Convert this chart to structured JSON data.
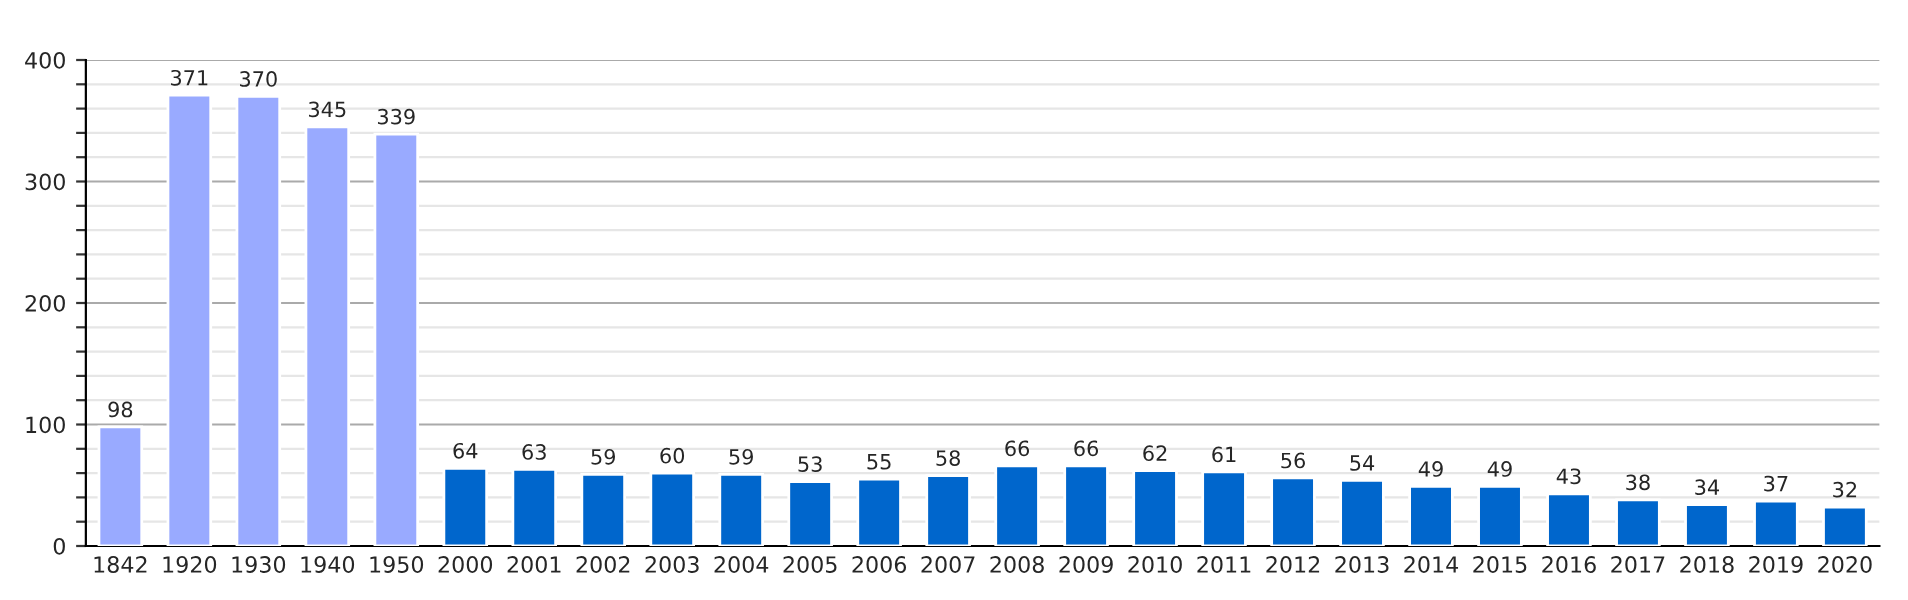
{
  "chart_data": {
    "type": "bar",
    "categories": [
      "1842",
      "1920",
      "1930",
      "1940",
      "1950",
      "2000",
      "2001",
      "2002",
      "2003",
      "2004",
      "2005",
      "2006",
      "2007",
      "2008",
      "2009",
      "2010",
      "2011",
      "2012",
      "2013",
      "2014",
      "2015",
      "2016",
      "2017",
      "2018",
      "2019",
      "2020"
    ],
    "values": [
      98,
      371,
      370,
      345,
      339,
      64,
      63,
      59,
      60,
      59,
      53,
      55,
      58,
      66,
      66,
      62,
      61,
      56,
      54,
      49,
      49,
      43,
      38,
      34,
      37,
      32
    ],
    "colors": [
      "#99aaff",
      "#99aaff",
      "#99aaff",
      "#99aaff",
      "#99aaff",
      "#0066cc",
      "#0066cc",
      "#0066cc",
      "#0066cc",
      "#0066cc",
      "#0066cc",
      "#0066cc",
      "#0066cc",
      "#0066cc",
      "#0066cc",
      "#0066cc",
      "#0066cc",
      "#0066cc",
      "#0066cc",
      "#0066cc",
      "#0066cc",
      "#0066cc",
      "#0066cc",
      "#0066cc",
      "#0066cc",
      "#0066cc"
    ],
    "ylim": [
      0,
      400
    ],
    "yticks": [
      0,
      {
        "value": 20,
        "label": null
      },
      {
        "value": 40,
        "label": null
      },
      {
        "value": 60,
        "label": null
      },
      {
        "value": 80,
        "label": null
      },
      100,
      {
        "value": 120,
        "label": null
      },
      {
        "value": 140,
        "label": null
      },
      {
        "value": 160,
        "label": null
      },
      {
        "value": 180,
        "label": null
      },
      200,
      {
        "value": 220,
        "label": null
      },
      {
        "value": 240,
        "label": null
      },
      {
        "value": 260,
        "label": null
      },
      {
        "value": 280,
        "label": null
      },
      300,
      {
        "value": 320,
        "label": null
      },
      {
        "value": 340,
        "label": null
      },
      {
        "value": 360,
        "label": null
      },
      {
        "value": 380,
        "label": null
      },
      400
    ],
    "grid": "y",
    "data_labels": true
  }
}
